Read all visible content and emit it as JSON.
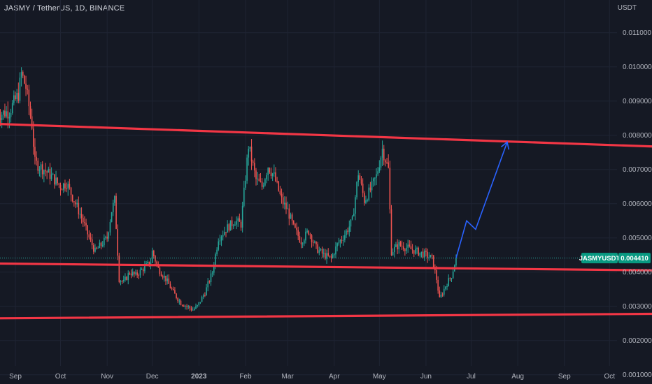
{
  "header": {
    "symbol_title": "JASMY / TetherUS, 1D, BINANCE",
    "currency": "USDT"
  },
  "colors": {
    "background": "#151924",
    "up": "#26a69a",
    "down": "#ef5350",
    "trendline": "#f23645",
    "projection": "#2962ff",
    "tag_bg": "#089981",
    "price_line": "#26a69a"
  },
  "price_tag": {
    "symbol": "JASMYUSDT",
    "price": "0.004410"
  },
  "chart_data": {
    "type": "candlestick",
    "ylim": [
      0.0008,
      0.0118
    ],
    "y_ticks": [
      "0.011000",
      "0.010000",
      "0.009000",
      "0.008000",
      "0.007000",
      "0.006000",
      "0.005000",
      "0.004000",
      "0.003000",
      "0.002000",
      "0.001000"
    ],
    "x_ticks": [
      {
        "label": "Sep",
        "date": "2022-09-01"
      },
      {
        "label": "Oct",
        "date": "2022-10-01"
      },
      {
        "label": "Nov",
        "date": "2022-11-01"
      },
      {
        "label": "Dec",
        "date": "2022-12-01"
      },
      {
        "label": "2023",
        "date": "2023-01-01",
        "bold": true
      },
      {
        "label": "Feb",
        "date": "2023-02-01"
      },
      {
        "label": "Mar",
        "date": "2023-03-01"
      },
      {
        "label": "Apr",
        "date": "2023-04-01"
      },
      {
        "label": "May",
        "date": "2023-05-01"
      },
      {
        "label": "Jun",
        "date": "2023-06-01"
      },
      {
        "label": "Jul",
        "date": "2023-07-01"
      },
      {
        "label": "Aug",
        "date": "2023-08-01"
      },
      {
        "label": "Sep",
        "date": "2023-09-01"
      },
      {
        "label": "Oct",
        "date": "2023-10-01"
      }
    ],
    "close_path": [
      [
        "2022-08-20",
        0.0086
      ],
      [
        "2022-08-28",
        0.0087
      ],
      [
        "2022-09-03",
        0.0092
      ],
      [
        "2022-09-05",
        0.0098
      ],
      [
        "2022-09-08",
        0.0094
      ],
      [
        "2022-09-12",
        0.0083
      ],
      [
        "2022-09-14",
        0.0072
      ],
      [
        "2022-09-20",
        0.007
      ],
      [
        "2022-09-25",
        0.0068
      ],
      [
        "2022-10-01",
        0.0065
      ],
      [
        "2022-10-05",
        0.0066
      ],
      [
        "2022-10-10",
        0.0061
      ],
      [
        "2022-10-15",
        0.0056
      ],
      [
        "2022-10-20",
        0.005
      ],
      [
        "2022-10-24",
        0.0046
      ],
      [
        "2022-10-28",
        0.0048
      ],
      [
        "2022-11-01",
        0.005
      ],
      [
        "2022-11-04",
        0.0058
      ],
      [
        "2022-11-06",
        0.0061
      ],
      [
        "2022-11-09",
        0.0038
      ],
      [
        "2022-11-12",
        0.0037
      ],
      [
        "2022-11-16",
        0.004
      ],
      [
        "2022-11-20",
        0.0039
      ],
      [
        "2022-11-25",
        0.0041
      ],
      [
        "2022-11-30",
        0.0043
      ],
      [
        "2022-12-01",
        0.0046
      ],
      [
        "2022-12-05",
        0.0041
      ],
      [
        "2022-12-10",
        0.0038
      ],
      [
        "2022-12-15",
        0.0034
      ],
      [
        "2022-12-20",
        0.0031
      ],
      [
        "2022-12-28",
        0.0029
      ],
      [
        "2022-12-31",
        0.003
      ],
      [
        "2023-01-05",
        0.0034
      ],
      [
        "2023-01-10",
        0.004
      ],
      [
        "2023-01-14",
        0.005
      ],
      [
        "2023-01-20",
        0.0053
      ],
      [
        "2023-01-25",
        0.0055
      ],
      [
        "2023-01-29",
        0.0054
      ],
      [
        "2023-02-03",
        0.0077
      ],
      [
        "2023-02-08",
        0.0067
      ],
      [
        "2023-02-12",
        0.0065
      ],
      [
        "2023-02-16",
        0.0071
      ],
      [
        "2023-02-20",
        0.0068
      ],
      [
        "2023-02-25",
        0.0061
      ],
      [
        "2023-03-01",
        0.0058
      ],
      [
        "2023-03-05",
        0.0053
      ],
      [
        "2023-03-10",
        0.0049
      ],
      [
        "2023-03-15",
        0.0052
      ],
      [
        "2023-03-20",
        0.0047
      ],
      [
        "2023-03-25",
        0.0045
      ],
      [
        "2023-03-30",
        0.0044
      ],
      [
        "2023-04-03",
        0.0048
      ],
      [
        "2023-04-08",
        0.0051
      ],
      [
        "2023-04-13",
        0.0055
      ],
      [
        "2023-04-17",
        0.0069
      ],
      [
        "2023-04-21",
        0.0061
      ],
      [
        "2023-04-25",
        0.0064
      ],
      [
        "2023-04-29",
        0.0068
      ],
      [
        "2023-05-03",
        0.0076
      ],
      [
        "2023-05-07",
        0.007
      ],
      [
        "2023-05-09",
        0.0046
      ],
      [
        "2023-05-14",
        0.0048
      ],
      [
        "2023-05-20",
        0.0047
      ],
      [
        "2023-05-26",
        0.0046
      ],
      [
        "2023-06-01",
        0.0045
      ],
      [
        "2023-06-05",
        0.0044
      ],
      [
        "2023-06-08",
        0.0038
      ],
      [
        "2023-06-10",
        0.0032
      ],
      [
        "2023-06-14",
        0.0036
      ],
      [
        "2023-06-18",
        0.0039
      ],
      [
        "2023-06-21",
        0.00441
      ]
    ],
    "trendlines": [
      {
        "name": "upper",
        "from": [
          "2022-08-20",
          0.00833
        ],
        "to": [
          "2023-10-31",
          0.00767
        ]
      },
      {
        "name": "middle",
        "from": [
          "2022-08-20",
          0.00425
        ],
        "to": [
          "2023-10-31",
          0.00405
        ]
      },
      {
        "name": "lower",
        "from": [
          "2022-08-20",
          0.00265
        ],
        "to": [
          "2023-10-31",
          0.00278
        ]
      }
    ],
    "projection": [
      [
        "2023-06-21",
        0.00441
      ],
      [
        "2023-06-28",
        0.0055
      ],
      [
        "2023-07-04",
        0.00525
      ],
      [
        "2023-07-25",
        0.0078
      ]
    ],
    "grid": true
  }
}
